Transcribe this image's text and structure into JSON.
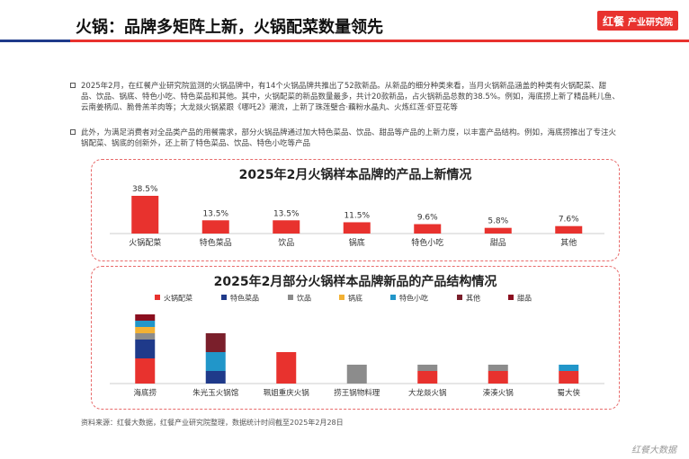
{
  "brand": {
    "logo": "红餐",
    "label": "产业研究院"
  },
  "title": "火锅：品牌多矩阵上新，火锅配菜数量领先",
  "paragraphs": [
    "2025年2月，在红餐产业研究院监测的火锅品牌中，有14个火锅品牌共推出了52款新品。从新品的细分种类来看，当月火锅新品涵盖的种类有火锅配菜、甜品、饮品、锅底、特色小吃、特色菜品和其他。其中，火锅配菜的新品数量最多，共计20款新品，占火锅新品总数的38.5%。例如，海底捞上新了精品耗儿鱼、云南姜柄瓜、脆骨羔羊肉等；大龙燚火锅紧跟《哪吒2》潮流，上新了珠莲璧合·藕粉水晶丸、火炼红莲·虾豆花等",
    "此外，为满足消费者对全品类产品的用餐需求，部分火锅品牌通过加大特色菜品、饮品、甜品等产品的上新力度，以丰富产品结构。例如，海底捞推出了专注火锅配菜、锅底的创新外，还上新了特色菜品、饮品、特色小吃等产品"
  ],
  "source": "资料来源：红餐大数据，红餐产业研究院整理，数据统计时间截至2025年2月28日",
  "footer": "红餐大数据",
  "colors": {
    "accent": "#e8322e",
    "navy": "#1f3a8a"
  },
  "chart_data": [
    {
      "type": "bar",
      "title": "2025年2月火锅样本品牌的产品上新情况",
      "categories": [
        "火锅配菜",
        "特色菜品",
        "饮品",
        "锅底",
        "特色小吃",
        "甜品",
        "其他"
      ],
      "values": [
        38.5,
        13.5,
        13.5,
        11.5,
        9.6,
        5.8,
        7.6
      ],
      "labels": [
        "38.5%",
        "13.5%",
        "13.5%",
        "11.5%",
        "9.6%",
        "5.8%",
        "7.6%"
      ],
      "color": "#e8322e"
    },
    {
      "type": "bar",
      "stacked": true,
      "title": "2025年2月部分火锅样本品牌新品的产品结构情况",
      "legend_position": "top",
      "categories": [
        "海底捞",
        "朱光玉火锅馆",
        "珮姐重庆火锅",
        "捞王锅物料理",
        "大龙燚火锅",
        "湊湊火锅",
        "蜀大侠"
      ],
      "series": [
        {
          "name": "火锅配菜",
          "color": "#e8322e",
          "values": [
            4,
            0,
            5,
            0,
            2,
            2,
            2
          ]
        },
        {
          "name": "特色菜品",
          "color": "#1f3a8a",
          "values": [
            3,
            2,
            0,
            0,
            0,
            0,
            0
          ]
        },
        {
          "name": "饮品",
          "color": "#8c8c8c",
          "values": [
            1,
            0,
            0,
            3,
            1,
            1,
            0
          ]
        },
        {
          "name": "锅底",
          "color": "#f2b134",
          "values": [
            1,
            0,
            0,
            0,
            0,
            0,
            0
          ]
        },
        {
          "name": "特色小吃",
          "color": "#2196c9",
          "values": [
            1,
            3,
            0,
            0,
            0,
            0,
            1
          ]
        },
        {
          "name": "其他",
          "color": "#7a1f2b",
          "values": [
            0,
            3,
            0,
            0,
            0,
            0,
            0
          ]
        },
        {
          "name": "甜品",
          "color": "#8b0e1f",
          "values": [
            1,
            0,
            0,
            0,
            0,
            0,
            0
          ]
        }
      ]
    }
  ]
}
